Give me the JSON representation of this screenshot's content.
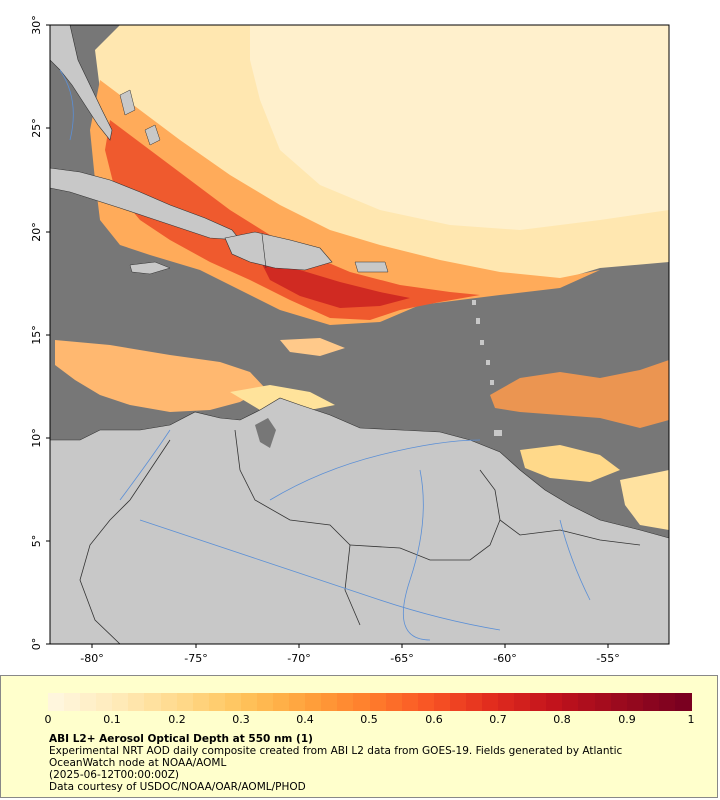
{
  "map": {
    "lat_ticks": [
      "0°",
      "5°",
      "10°",
      "15°",
      "20°",
      "25°",
      "30°"
    ],
    "lon_ticks": [
      "-80°",
      "-75°",
      "-70°",
      "-65°",
      "-60°",
      "-55°"
    ],
    "colors": {
      "land": "#c8c8c8",
      "no_data": "#777777",
      "border": "#333333",
      "river": "#5b8fd6",
      "frame": "#000000"
    }
  },
  "legend": {
    "labels": [
      "0",
      "0.1",
      "0.2",
      "0.3",
      "0.4",
      "0.5",
      "0.6",
      "0.7",
      "0.8",
      "0.9",
      "1"
    ],
    "colors": [
      "#fff6dd",
      "#ffeab8",
      "#ffd98a",
      "#ffc35a",
      "#ffa23c",
      "#ff7d2c",
      "#f85324",
      "#e02a1e",
      "#c0121c",
      "#9a0a1e",
      "#7a0020"
    ],
    "title": "ABI L2+ Aerosol Optical Depth at 550 nm (1)",
    "line1": "Experimental NRT AOD daily composite created from ABI L2 data from GOES-19. Fields generated by Atlantic",
    "line2": "OceanWatch node at NOAA/AOML",
    "line3": "(2025-06-12T00:00:00Z)",
    "line4": "Data courtesy of USDOC/NOAA/OAR/AOML/PHOD"
  }
}
